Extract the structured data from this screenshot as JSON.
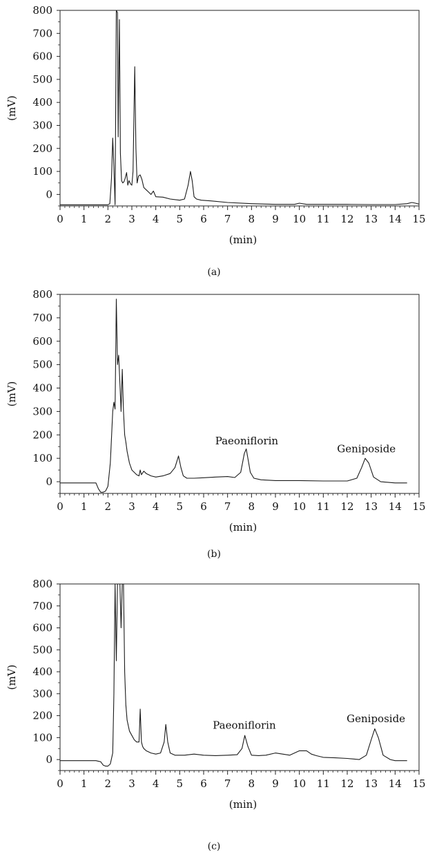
{
  "chart_data": [
    {
      "type": "line",
      "caption": "(a)",
      "xlabel": "(min)",
      "ylabel": "(mV)",
      "xlim": [
        0,
        15
      ],
      "ylim": [
        -50,
        800
      ],
      "x_ticks": [
        "0",
        "1",
        "2",
        "3",
        "4",
        "5",
        "6",
        "7",
        "8",
        "9",
        "10",
        "11",
        "12",
        "13",
        "14",
        "15"
      ],
      "y_ticks": [
        "0",
        "100",
        "200",
        "300",
        "400",
        "500",
        "600",
        "700",
        "800"
      ],
      "grid": false,
      "annotations": [],
      "series": [
        {
          "x": [
            0,
            1.0,
            2.0,
            2.08,
            2.15,
            2.2,
            2.25,
            2.3,
            2.35,
            2.4,
            2.43,
            2.48,
            2.52,
            2.57,
            2.62,
            2.67,
            2.72,
            2.78,
            2.83,
            2.88,
            2.95,
            3.0,
            3.05,
            3.12,
            3.17,
            3.22,
            3.28,
            3.35,
            3.42,
            3.5,
            3.6,
            3.7,
            3.8,
            3.9,
            4.0,
            4.3,
            4.6,
            5.0,
            5.2,
            5.35,
            5.45,
            5.52,
            5.6,
            5.7,
            5.9,
            6.3,
            7.0,
            8.0,
            9.0,
            9.8,
            10.0,
            10.3,
            11.0,
            12.0,
            13.0,
            14.0,
            14.5,
            14.7,
            14.85,
            15.0
          ],
          "y": [
            -45,
            -45,
            -45,
            -40,
            70,
            245,
            120,
            -45,
            800,
            790,
            250,
            760,
            180,
            60,
            50,
            55,
            70,
            95,
            40,
            60,
            45,
            40,
            100,
            555,
            200,
            50,
            80,
            85,
            65,
            30,
            20,
            10,
            0,
            15,
            -10,
            -12,
            -20,
            -25,
            -20,
            40,
            100,
            60,
            -10,
            -20,
            -25,
            -28,
            -35,
            -40,
            -43,
            -43,
            -38,
            -43,
            -43,
            -43,
            -44,
            -44,
            -40,
            -35,
            -38,
            -42
          ]
        }
      ]
    },
    {
      "type": "line",
      "caption": "(b)",
      "xlabel": "(min)",
      "ylabel": "(mV)",
      "xlim": [
        0,
        15
      ],
      "ylim": [
        -50,
        800
      ],
      "x_ticks": [
        "0",
        "1",
        "2",
        "3",
        "4",
        "5",
        "6",
        "7",
        "8",
        "9",
        "10",
        "11",
        "12",
        "13",
        "14",
        "15"
      ],
      "y_ticks": [
        "0",
        "100",
        "200",
        "300",
        "400",
        "500",
        "600",
        "700",
        "800"
      ],
      "grid": false,
      "annotations": [
        {
          "text": "Paeoniflorin",
          "x": 7.8,
          "y": 160
        },
        {
          "text": "Geniposide",
          "x": 12.8,
          "y": 125
        }
      ],
      "series": [
        {
          "x": [
            0,
            1.0,
            1.5,
            1.6,
            1.7,
            1.8,
            1.9,
            2.0,
            2.1,
            2.2,
            2.25,
            2.3,
            2.35,
            2.4,
            2.45,
            2.5,
            2.55,
            2.6,
            2.65,
            2.7,
            2.75,
            2.8,
            2.9,
            3.0,
            3.1,
            3.2,
            3.3,
            3.35,
            3.4,
            3.5,
            3.55,
            3.6,
            3.7,
            3.8,
            4.0,
            4.3,
            4.6,
            4.8,
            4.95,
            5.05,
            5.15,
            5.3,
            5.6,
            6.0,
            6.5,
            7.0,
            7.3,
            7.55,
            7.7,
            7.78,
            7.85,
            7.95,
            8.1,
            8.4,
            9.0,
            10.0,
            11.0,
            12.0,
            12.4,
            12.6,
            12.75,
            12.9,
            13.1,
            13.4,
            14.0,
            14.5
          ],
          "y": [
            -5,
            -5,
            -5,
            -30,
            -45,
            -45,
            -40,
            -20,
            80,
            300,
            340,
            310,
            780,
            500,
            540,
            420,
            300,
            480,
            300,
            200,
            170,
            130,
            80,
            50,
            40,
            30,
            25,
            50,
            30,
            45,
            40,
            35,
            30,
            25,
            20,
            25,
            35,
            60,
            110,
            60,
            25,
            15,
            15,
            17,
            20,
            22,
            18,
            40,
            120,
            140,
            100,
            40,
            15,
            8,
            5,
            5,
            3,
            3,
            15,
            60,
            100,
            80,
            20,
            0,
            -5,
            -5
          ]
        }
      ]
    },
    {
      "type": "line",
      "caption": "(c)",
      "xlabel": "(min)",
      "ylabel": "(mV)",
      "xlim": [
        0,
        15
      ],
      "ylim": [
        -50,
        800
      ],
      "x_ticks": [
        "0",
        "1",
        "2",
        "3",
        "4",
        "5",
        "6",
        "7",
        "8",
        "9",
        "10",
        "11",
        "12",
        "13",
        "14",
        "15"
      ],
      "y_ticks": [
        "0",
        "100",
        "200",
        "300",
        "400",
        "500",
        "600",
        "700",
        "800"
      ],
      "grid": false,
      "annotations": [
        {
          "text": "Paeoniflorin",
          "x": 7.7,
          "y": 140
        },
        {
          "text": "Geniposide",
          "x": 13.2,
          "y": 170
        }
      ],
      "series": [
        {
          "x": [
            0,
            1.0,
            1.5,
            1.7,
            1.8,
            1.9,
            2.0,
            2.1,
            2.2,
            2.25,
            2.3,
            2.35,
            2.4,
            2.45,
            2.5,
            2.55,
            2.6,
            2.65,
            2.7,
            2.75,
            2.8,
            2.9,
            3.0,
            3.1,
            3.2,
            3.3,
            3.35,
            3.4,
            3.45,
            3.5,
            3.6,
            3.7,
            3.8,
            4.0,
            4.2,
            4.35,
            4.42,
            4.5,
            4.6,
            4.8,
            5.2,
            5.6,
            6.0,
            6.5,
            7.0,
            7.4,
            7.6,
            7.72,
            7.85,
            8.0,
            8.3,
            8.6,
            9.0,
            9.3,
            9.6,
            10.0,
            10.3,
            10.5,
            10.7,
            11.0,
            11.5,
            12.0,
            12.5,
            12.8,
            13.0,
            13.15,
            13.3,
            13.5,
            13.8,
            14.0,
            14.5
          ],
          "y": [
            -5,
            -5,
            -5,
            -10,
            -25,
            -30,
            -30,
            -20,
            30,
            300,
            800,
            450,
            800,
            800,
            800,
            600,
            800,
            800,
            400,
            250,
            180,
            130,
            110,
            90,
            80,
            80,
            230,
            80,
            60,
            50,
            40,
            35,
            30,
            25,
            30,
            80,
            160,
            80,
            30,
            20,
            20,
            25,
            20,
            18,
            20,
            22,
            50,
            110,
            60,
            20,
            18,
            20,
            30,
            25,
            20,
            40,
            40,
            25,
            18,
            10,
            8,
            5,
            0,
            20,
            90,
            140,
            100,
            20,
            0,
            -5,
            -5
          ]
        }
      ]
    }
  ]
}
